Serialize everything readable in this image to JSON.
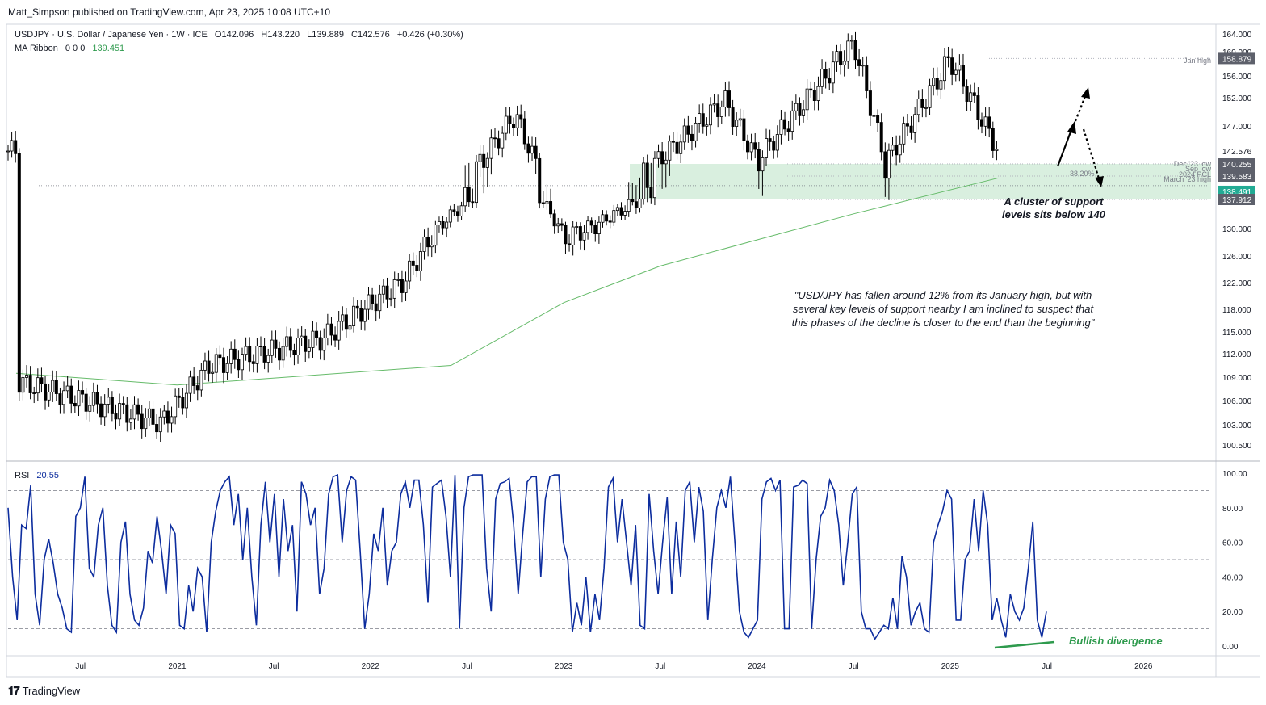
{
  "header": {
    "publisher_line": "Matt_Simpson published on TradingView.com, Apr 23, 2025 10:08 UTC+10"
  },
  "legend": {
    "symbol_line": "USDJPY · U.S. Dollar / Japanese Yen · 1W · ICE",
    "open": "O142.096",
    "high": "H143.220",
    "low": "L139.889",
    "close": "C142.576",
    "change": "+0.426 (+0.30%)",
    "ma_label": "MA Ribbon",
    "ma_params": "0 0 0",
    "ma_value": "139.451",
    "rsi_label": "RSI",
    "rsi_value": "20.55"
  },
  "colors": {
    "up_candle": "#ffffff",
    "down_candle": "#000000",
    "ma_line": "#66bb6a",
    "rsi_line": "#0d2d9e",
    "support_zone": "#81c995",
    "annotation_green": "#2e9a4d",
    "price_tag_green": "#22ab94",
    "price_tag_gray": "#5d606b"
  },
  "annotations": {
    "support_title": "A cluster of support",
    "support_sub": "levels sits below 140",
    "quote_line1": "\"USD/JPY has fallen around 12% from its January high, but with",
    "quote_line2": "several key levels of support nearby I am inclined to suspect that",
    "quote_line3": "this phases of the decline is closer to the end than the beginning\"",
    "bullish_divergence": "Bullish divergence",
    "jan_high": "Jan high",
    "dec23_low": "Dec '23 low",
    "sep_low": "Sep low",
    "prev_high": "2024 PCL",
    "fib_label": "38.20%",
    "march23_high": "March '23 high"
  },
  "footer": {
    "brand": "TradingView"
  },
  "chart_data": [
    {
      "type": "candlestick",
      "title": "USDJPY · U.S. Dollar / Japanese Yen · 1W · ICE",
      "x_ticks": [
        "Jul",
        "2021",
        "Jul",
        "2022",
        "Jul",
        "2023",
        "Jul",
        "2024",
        "Jul",
        "2025",
        "Jul",
        "2026"
      ],
      "y_ticks": [
        "164.000",
        "160.000",
        "156.000",
        "152.000",
        "147.000",
        "142.576",
        "140.255",
        "139.583",
        "138.491",
        "137.912",
        "130.000",
        "126.000",
        "122.000",
        "118.000",
        "115.000",
        "112.000",
        "109.000",
        "106.000",
        "103.000",
        "100.500"
      ],
      "y_price_tags": [
        {
          "label": "158.879",
          "value": 158.879,
          "style": "gray"
        },
        {
          "label": "142.576",
          "value": 142.576,
          "style": "plain"
        },
        {
          "label": "140.255",
          "value": 140.255,
          "style": "gray"
        },
        {
          "label": "139.583",
          "value": 139.583,
          "style": "gray"
        },
        {
          "label": "138.491",
          "value": 138.491,
          "style": "green"
        },
        {
          "label": "137.912",
          "value": 137.912,
          "style": "gray"
        }
      ],
      "ylim": [
        99.5,
        165
      ],
      "series": [
        {
          "name": "USDJPY",
          "key_points": [
            {
              "date": "2020-03",
              "value": 108.5
            },
            {
              "date": "2020-12",
              "value": 103.2
            },
            {
              "date": "2021-03",
              "value": 110.5
            },
            {
              "date": "2021-10",
              "value": 114.0
            },
            {
              "date": "2022-03",
              "value": 122.0
            },
            {
              "date": "2022-10",
              "value": 149.0
            },
            {
              "date": "2023-01",
              "value": 128.5
            },
            {
              "date": "2023-03",
              "value": 131.0
            },
            {
              "date": "2023-11",
              "value": 151.5
            },
            {
              "date": "2024-01",
              "value": 141.0
            },
            {
              "date": "2024-07",
              "value": 161.9
            },
            {
              "date": "2024-09",
              "value": 140.5
            },
            {
              "date": "2025-01",
              "value": 158.9
            },
            {
              "date": "2025-04",
              "value": 142.576
            }
          ]
        },
        {
          "name": "MA Ribbon",
          "key_points": [
            {
              "date": "2020-03",
              "value": 109.5
            },
            {
              "date": "2021-01",
              "value": 108.0
            },
            {
              "date": "2022-06",
              "value": 110.5
            },
            {
              "date": "2023-01",
              "value": 119.0
            },
            {
              "date": "2023-07",
              "value": 124.5
            },
            {
              "date": "2024-07",
              "value": 134.0
            },
            {
              "date": "2025-04",
              "value": 139.451
            }
          ]
        }
      ],
      "levels": [
        {
          "name": "Jan high",
          "value": 158.879
        },
        {
          "name": "Dec '23 low",
          "value": 140.255
        },
        {
          "name": "Sep low",
          "value": 139.583
        },
        {
          "name": "March '23 high",
          "value": 137.912
        }
      ]
    },
    {
      "type": "line",
      "title": "RSI",
      "ylim": [
        0,
        100
      ],
      "y_ticks": [
        "100.00",
        "80.00",
        "60.00",
        "40.00",
        "20.00",
        "0.00"
      ],
      "reference_lines": [
        90,
        50,
        10
      ],
      "series": [
        {
          "name": "RSI",
          "values": [
            80,
            40,
            15,
            70,
            68,
            93,
            30,
            12,
            50,
            62,
            48,
            30,
            22,
            10,
            8,
            75,
            80,
            98,
            45,
            40,
            70,
            80,
            35,
            12,
            8,
            60,
            72,
            30,
            15,
            12,
            22,
            55,
            48,
            75,
            55,
            30,
            70,
            65,
            12,
            10,
            35,
            20,
            45,
            40,
            8,
            60,
            78,
            90,
            95,
            98,
            70,
            88,
            50,
            80,
            40,
            12,
            70,
            95,
            60,
            88,
            40,
            85,
            55,
            70,
            20,
            95,
            88,
            70,
            80,
            30,
            45,
            88,
            98,
            99,
            60,
            90,
            98,
            96,
            55,
            10,
            30,
            65,
            55,
            80,
            35,
            55,
            60,
            88,
            95,
            80,
            96,
            96,
            70,
            25,
            92,
            94,
            96,
            75,
            40,
            99,
            10,
            80,
            98,
            99,
            99,
            99,
            45,
            20,
            85,
            94,
            95,
            97,
            70,
            30,
            65,
            95,
            98,
            98,
            40,
            85,
            98,
            99,
            99,
            60,
            50,
            8,
            25,
            12,
            40,
            8,
            30,
            15,
            45,
            92,
            97,
            60,
            85,
            60,
            35,
            70,
            12,
            10,
            88,
            55,
            30,
            60,
            86,
            30,
            72,
            40,
            90,
            95,
            60,
            92,
            78,
            15,
            50,
            80,
            90,
            80,
            98,
            60,
            20,
            8,
            5,
            10,
            15,
            85,
            95,
            97,
            90,
            96,
            10,
            10,
            92,
            93,
            96,
            94,
            10,
            50,
            75,
            80,
            96,
            90,
            70,
            35,
            60,
            88,
            92,
            20,
            10,
            10,
            4,
            8,
            12,
            10,
            28,
            10,
            52,
            40,
            12,
            20,
            25,
            10,
            8,
            60,
            70,
            78,
            90,
            85,
            15,
            15,
            50,
            55,
            85,
            55,
            90,
            70,
            15,
            28,
            15,
            5,
            30,
            20,
            15,
            22,
            45,
            72,
            15,
            5,
            20
          ]
        }
      ]
    }
  ]
}
